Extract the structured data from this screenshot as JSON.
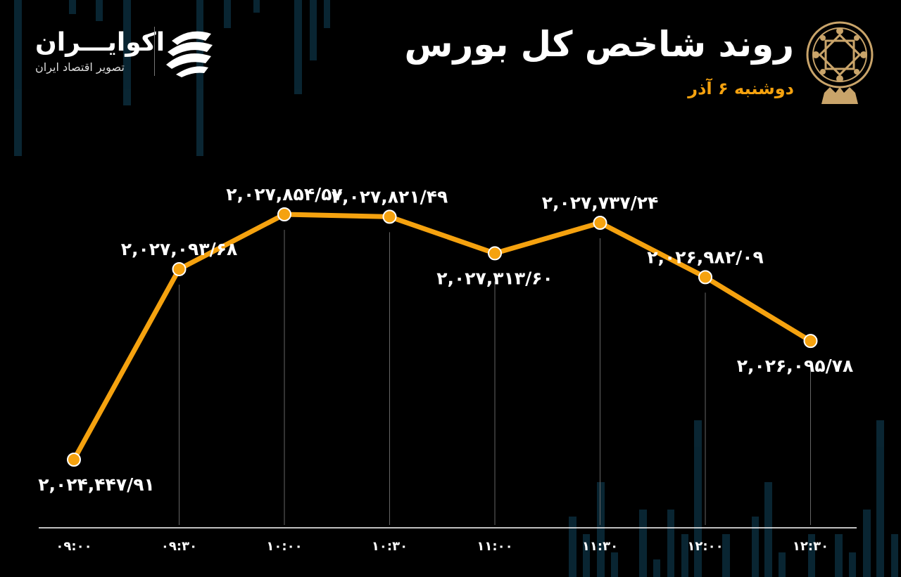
{
  "header": {
    "title": "روند شاخص کل بورس",
    "date": "دوشنبه ۶ آذر"
  },
  "logo": {
    "name": "اکوایـــران",
    "tagline": "تصویر اقتصاد ایران"
  },
  "colors": {
    "accent": "#f5a20f",
    "background": "#000000",
    "text": "#ffffff",
    "background_bars": "#0b2a38"
  },
  "icons": {
    "emblem": "stock-exchange-emblem-icon",
    "logo": "ecoiran-logo-icon"
  },
  "chart_data": {
    "type": "line",
    "title": "روند شاخص کل بورس",
    "categories": [
      "۰۹:۰۰",
      "۰۹:۳۰",
      "۱۰:۰۰",
      "۱۰:۳۰",
      "۱۱:۰۰",
      "۱۱:۳۰",
      "۱۲:۰۰",
      "۱۲:۳۰"
    ],
    "values": [
      2024447.91,
      2027093.68,
      2027854.57,
      2027821.49,
      2027313.6,
      2027737.24,
      2026982.09,
      2026095.78
    ],
    "labels": [
      "۲,۰۲۴,۴۴۷/۹۱",
      "۲,۰۲۷,۰۹۳/۶۸",
      "۲,۰۲۷,۸۵۴/۵۷",
      "۲,۰۲۷,۸۲۱/۴۹",
      "۲,۰۲۷,۳۱۳/۶۰",
      "۲,۰۲۷,۷۳۷/۲۴",
      "۲,۰۲۶,۹۸۲/۰۹",
      "۲,۰۲۶,۰۹۵/۷۸"
    ],
    "label_positions": [
      "below",
      "above",
      "above",
      "above",
      "below",
      "above",
      "above",
      "below"
    ],
    "grid": false,
    "legend": "none"
  }
}
